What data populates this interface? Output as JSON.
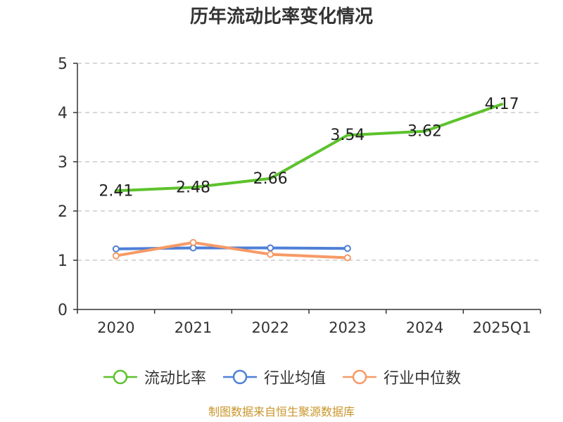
{
  "title": "历年流动比率变化情况",
  "footer": "制图数据来自恒生聚源数据库",
  "chart_data": {
    "type": "line",
    "categories": [
      "2020",
      "2021",
      "2022",
      "2023",
      "2024",
      "2025Q1"
    ],
    "ylim": [
      0,
      5
    ],
    "yticks": [
      0,
      1,
      2,
      3,
      4,
      5
    ],
    "grid": true,
    "legend_position": "bottom",
    "series": [
      {
        "name": "流动比率",
        "values": [
          2.41,
          2.48,
          2.66,
          3.54,
          3.62,
          4.17
        ],
        "color": "#5cc22c",
        "show_labels": true,
        "show_markers": false
      },
      {
        "name": "行业均值",
        "values": [
          1.23,
          1.25,
          1.25,
          1.24,
          null,
          null
        ],
        "color": "#4f7fd7",
        "show_labels": false,
        "show_markers": true
      },
      {
        "name": "行业中位数",
        "values": [
          1.09,
          1.36,
          1.12,
          1.05,
          null,
          null
        ],
        "color": "#f79a66",
        "show_labels": false,
        "show_markers": true
      }
    ]
  }
}
